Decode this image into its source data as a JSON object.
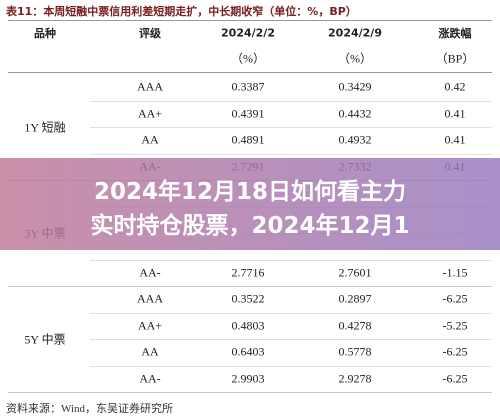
{
  "title": "表11：本周短融中票信用利差短期走扩，中长期收窄（单位：%，BP）",
  "table": {
    "header": [
      "品种",
      "评级",
      "2024/2/2",
      "2024/2/9",
      "涨跌幅"
    ],
    "units": [
      "（%）",
      "（%）",
      "（BP）"
    ],
    "groups": [
      {
        "name": "1Y 短融",
        "rows": [
          [
            "AAA",
            "0.3387",
            "0.3429",
            "0.42"
          ],
          [
            "AA+",
            "0.4391",
            "0.4432",
            "0.41"
          ],
          [
            "AA",
            "0.4891",
            "0.4932",
            "0.41"
          ],
          [
            "AA-",
            "2.7291",
            "2.7332",
            "0.41"
          ]
        ]
      },
      {
        "name": "3Y 中票",
        "rows": [
          [
            "AA-",
            "2.7716",
            "2.7601",
            "-1.15"
          ]
        ]
      },
      {
        "name": "5Y 中票",
        "rows": [
          [
            "AAA",
            "0.3522",
            "0.2897",
            "-6.25"
          ],
          [
            "AA+",
            "0.4803",
            "0.4278",
            "-5.25"
          ],
          [
            "AA",
            "0.6403",
            "0.5778",
            "-6.25"
          ],
          [
            "AA-",
            "2.9903",
            "2.9278",
            "-6.25"
          ]
        ]
      }
    ]
  },
  "source": "资料来源：Wind，东吴证券研究所",
  "banner": {
    "lines": [
      "2024年12月18日如何看主力",
      "实时持仓股票，2024年12月1"
    ]
  }
}
